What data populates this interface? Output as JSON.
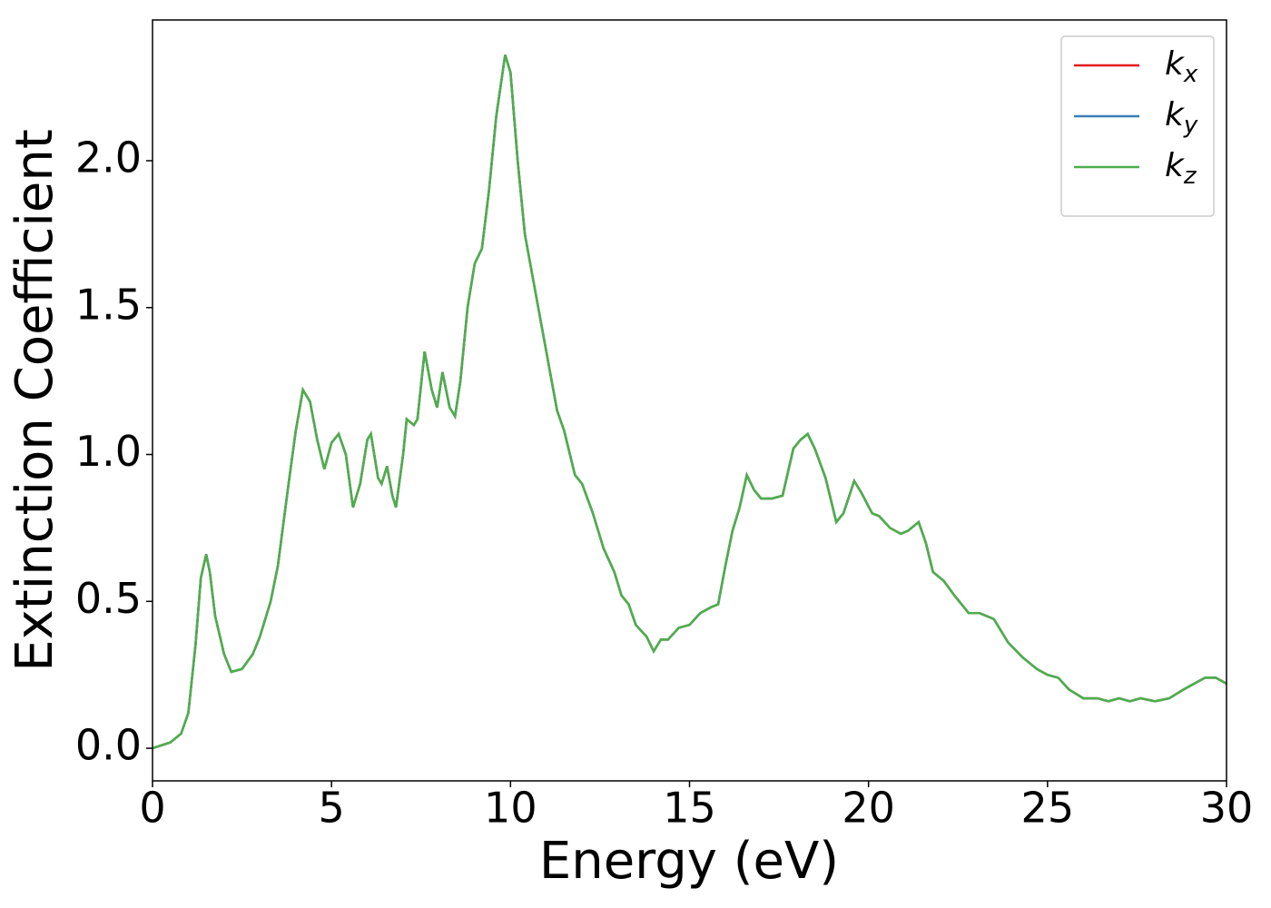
{
  "chart_data": {
    "type": "line",
    "xlabel": "Energy (eV)",
    "ylabel": "Extinction Coefficient",
    "xlim": [
      0,
      30
    ],
    "xticks": [
      0,
      5,
      10,
      15,
      20,
      25,
      30
    ],
    "ylim": [
      -0.111,
      2.479
    ],
    "yticks": [
      {
        "value": 0,
        "label": "0.0"
      },
      {
        "value": 0.5,
        "label": "0.5"
      },
      {
        "value": 1,
        "label": "1.0"
      },
      {
        "value": 1.5,
        "label": "1.5"
      },
      {
        "value": 2,
        "label": "2.0"
      }
    ],
    "grid": false,
    "legend": "upper right",
    "x": [
      0,
      0.5,
      0.8,
      1.0,
      1.2,
      1.35,
      1.5,
      1.6,
      1.75,
      2.0,
      2.2,
      2.5,
      2.8,
      3.0,
      3.3,
      3.5,
      3.8,
      4.0,
      4.2,
      4.4,
      4.6,
      4.8,
      5.0,
      5.2,
      5.4,
      5.6,
      5.8,
      6.0,
      6.1,
      6.3,
      6.4,
      6.55,
      6.7,
      6.8,
      7.0,
      7.1,
      7.3,
      7.4,
      7.6,
      7.8,
      7.95,
      8.1,
      8.3,
      8.45,
      8.6,
      8.8,
      9.0,
      9.2,
      9.4,
      9.6,
      9.85,
      10.0,
      10.2,
      10.4,
      10.7,
      11.0,
      11.3,
      11.5,
      11.8,
      12.0,
      12.3,
      12.6,
      12.9,
      13.1,
      13.3,
      13.5,
      13.8,
      14.0,
      14.2,
      14.4,
      14.7,
      15.0,
      15.3,
      15.6,
      15.8,
      16.0,
      16.2,
      16.4,
      16.6,
      16.8,
      17.0,
      17.3,
      17.6,
      17.9,
      18.1,
      18.3,
      18.5,
      18.8,
      19.1,
      19.3,
      19.6,
      19.8,
      20.1,
      20.3,
      20.6,
      20.9,
      21.1,
      21.4,
      21.6,
      21.8,
      22.1,
      22.4,
      22.8,
      23.1,
      23.5,
      23.9,
      24.3,
      24.7,
      25.0,
      25.3,
      25.6,
      26.0,
      26.4,
      26.7,
      27.0,
      27.3,
      27.6,
      28.0,
      28.4,
      28.8,
      29.1,
      29.4,
      29.7,
      30.0
    ],
    "series": [
      {
        "name": "kx",
        "color": "#e41a1c",
        "values": [
          0,
          0.02,
          0.05,
          0.12,
          0.35,
          0.58,
          0.66,
          0.6,
          0.45,
          0.32,
          0.26,
          0.27,
          0.32,
          0.38,
          0.5,
          0.62,
          0.9,
          1.08,
          1.22,
          1.18,
          1.05,
          0.95,
          1.04,
          1.07,
          1.0,
          0.82,
          0.9,
          1.05,
          1.07,
          0.92,
          0.9,
          0.96,
          0.86,
          0.82,
          1.0,
          1.12,
          1.1,
          1.12,
          1.35,
          1.22,
          1.16,
          1.28,
          1.16,
          1.13,
          1.25,
          1.5,
          1.65,
          1.7,
          1.9,
          2.15,
          2.36,
          2.3,
          2.0,
          1.75,
          1.55,
          1.35,
          1.15,
          1.08,
          0.93,
          0.9,
          0.8,
          0.68,
          0.6,
          0.52,
          0.49,
          0.42,
          0.38,
          0.33,
          0.37,
          0.37,
          0.41,
          0.42,
          0.46,
          0.48,
          0.49,
          0.62,
          0.74,
          0.82,
          0.93,
          0.88,
          0.85,
          0.85,
          0.86,
          1.02,
          1.05,
          1.07,
          1.02,
          0.92,
          0.77,
          0.8,
          0.91,
          0.87,
          0.8,
          0.79,
          0.75,
          0.73,
          0.74,
          0.77,
          0.7,
          0.6,
          0.57,
          0.52,
          0.46,
          0.46,
          0.44,
          0.36,
          0.31,
          0.27,
          0.25,
          0.24,
          0.2,
          0.17,
          0.17,
          0.16,
          0.17,
          0.16,
          0.17,
          0.16,
          0.17,
          0.2,
          0.22,
          0.24,
          0.24,
          0.22
        ]
      },
      {
        "name": "ky",
        "color": "#377eb8",
        "values": [
          0,
          0.02,
          0.05,
          0.12,
          0.35,
          0.58,
          0.66,
          0.6,
          0.45,
          0.32,
          0.26,
          0.27,
          0.32,
          0.38,
          0.5,
          0.62,
          0.9,
          1.08,
          1.22,
          1.18,
          1.05,
          0.95,
          1.04,
          1.07,
          1.0,
          0.82,
          0.9,
          1.05,
          1.07,
          0.92,
          0.9,
          0.96,
          0.86,
          0.82,
          1.0,
          1.12,
          1.1,
          1.12,
          1.35,
          1.22,
          1.16,
          1.28,
          1.16,
          1.13,
          1.25,
          1.5,
          1.65,
          1.7,
          1.9,
          2.15,
          2.36,
          2.3,
          2.0,
          1.75,
          1.55,
          1.35,
          1.15,
          1.08,
          0.93,
          0.9,
          0.8,
          0.68,
          0.6,
          0.52,
          0.49,
          0.42,
          0.38,
          0.33,
          0.37,
          0.37,
          0.41,
          0.42,
          0.46,
          0.48,
          0.49,
          0.62,
          0.74,
          0.82,
          0.93,
          0.88,
          0.85,
          0.85,
          0.86,
          1.02,
          1.05,
          1.07,
          1.02,
          0.92,
          0.77,
          0.8,
          0.91,
          0.87,
          0.8,
          0.79,
          0.75,
          0.73,
          0.74,
          0.77,
          0.7,
          0.6,
          0.57,
          0.52,
          0.46,
          0.46,
          0.44,
          0.36,
          0.31,
          0.27,
          0.25,
          0.24,
          0.2,
          0.17,
          0.17,
          0.16,
          0.17,
          0.16,
          0.17,
          0.16,
          0.17,
          0.2,
          0.22,
          0.24,
          0.24,
          0.22
        ]
      },
      {
        "name": "kz",
        "color": "#4daf4a",
        "values": [
          0,
          0.02,
          0.05,
          0.12,
          0.35,
          0.58,
          0.66,
          0.6,
          0.45,
          0.32,
          0.26,
          0.27,
          0.32,
          0.38,
          0.5,
          0.62,
          0.9,
          1.08,
          1.22,
          1.18,
          1.05,
          0.95,
          1.04,
          1.07,
          1.0,
          0.82,
          0.9,
          1.05,
          1.07,
          0.92,
          0.9,
          0.96,
          0.86,
          0.82,
          1.0,
          1.12,
          1.1,
          1.12,
          1.35,
          1.22,
          1.16,
          1.28,
          1.16,
          1.13,
          1.25,
          1.5,
          1.65,
          1.7,
          1.9,
          2.15,
          2.36,
          2.3,
          2.0,
          1.75,
          1.55,
          1.35,
          1.15,
          1.08,
          0.93,
          0.9,
          0.8,
          0.68,
          0.6,
          0.52,
          0.49,
          0.42,
          0.38,
          0.33,
          0.37,
          0.37,
          0.41,
          0.42,
          0.46,
          0.48,
          0.49,
          0.62,
          0.74,
          0.82,
          0.93,
          0.88,
          0.85,
          0.85,
          0.86,
          1.02,
          1.05,
          1.07,
          1.02,
          0.92,
          0.77,
          0.8,
          0.91,
          0.87,
          0.8,
          0.79,
          0.75,
          0.73,
          0.74,
          0.77,
          0.7,
          0.6,
          0.57,
          0.52,
          0.46,
          0.46,
          0.44,
          0.36,
          0.31,
          0.27,
          0.25,
          0.24,
          0.2,
          0.17,
          0.17,
          0.16,
          0.17,
          0.16,
          0.17,
          0.16,
          0.17,
          0.2,
          0.22,
          0.24,
          0.24,
          0.22
        ]
      }
    ]
  }
}
